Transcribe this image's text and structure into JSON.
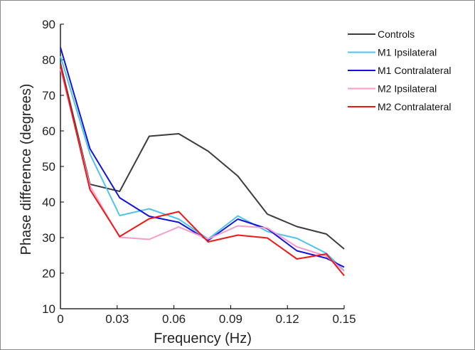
{
  "chart_data": {
    "type": "line",
    "title": "",
    "xlabel": "Frequency (Hz)",
    "ylabel": "Phase difference (degrees)",
    "xlim": [
      0,
      0.15
    ],
    "ylim": [
      10,
      90
    ],
    "xticks": [
      0,
      0.03,
      0.06,
      0.09,
      0.12,
      0.15
    ],
    "xtick_labels": [
      "0",
      "0.03",
      "0.06",
      "0.09",
      "0.12",
      "0.15"
    ],
    "yticks": [
      10,
      20,
      30,
      40,
      50,
      60,
      70,
      80,
      90
    ],
    "ytick_labels": [
      "10",
      "20",
      "30",
      "40",
      "50",
      "60",
      "70",
      "80",
      "90"
    ],
    "grid": false,
    "legend_position": "top-right",
    "x": [
      0,
      0.0156,
      0.0313,
      0.0469,
      0.0625,
      0.0781,
      0.0938,
      0.1094,
      0.125,
      0.1406,
      0.15
    ],
    "series": [
      {
        "name": "Controls",
        "color": "#3c3c3c",
        "values": [
          79,
          45,
          43,
          58.5,
          59.2,
          54.3,
          47.3,
          36.6,
          33.1,
          31,
          26.8
        ]
      },
      {
        "name": "M1 Ipsilateral",
        "color": "#4fc3ea",
        "values": [
          81,
          53.5,
          36.2,
          38.1,
          35.2,
          29.6,
          36.1,
          31.7,
          29.8,
          25.6,
          20.7
        ]
      },
      {
        "name": "M1 Contralateral",
        "color": "#1414d8",
        "values": [
          83.5,
          55,
          41.2,
          36,
          34.3,
          29.2,
          35.2,
          32.5,
          26.3,
          24.2,
          21.7
        ]
      },
      {
        "name": "M2 Ipsilateral",
        "color": "#f59ccd",
        "values": [
          77.5,
          44.5,
          30.1,
          29.5,
          33,
          29.6,
          33.3,
          32.7,
          27.4,
          24.8,
          20.6
        ]
      },
      {
        "name": "M2 Contralateral",
        "color": "#ee1818",
        "values": [
          78.5,
          43.5,
          30.3,
          35.3,
          37.3,
          28.8,
          30.7,
          29.9,
          24,
          25.4,
          19.3
        ]
      }
    ]
  }
}
